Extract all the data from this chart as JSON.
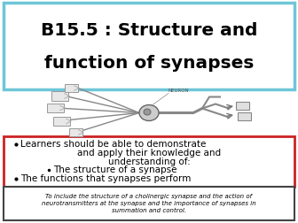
{
  "title_line1": "B15.5 : Structure and",
  "title_line2": "function of synapses",
  "title_border_color": "#6ec6d8",
  "bg_color": "#ffffff",
  "bullet_box_border": "#cc2222",
  "bullet_lines": [
    "Learners should be able to demonstrate",
    "and apply their knowledge and",
    "understanding of:",
    "The structure of a synapse",
    "The functions that synapses perform"
  ],
  "bullet_indent": [
    false,
    false,
    false,
    true,
    false
  ],
  "italic_box_border": "#444444",
  "italic_text_line1": "To include the structure of a cholinergic synapse and the action of",
  "italic_text_line2": "neurotransmitters at the synapse and the importance of synapses in",
  "italic_text_line3": "summation and control."
}
